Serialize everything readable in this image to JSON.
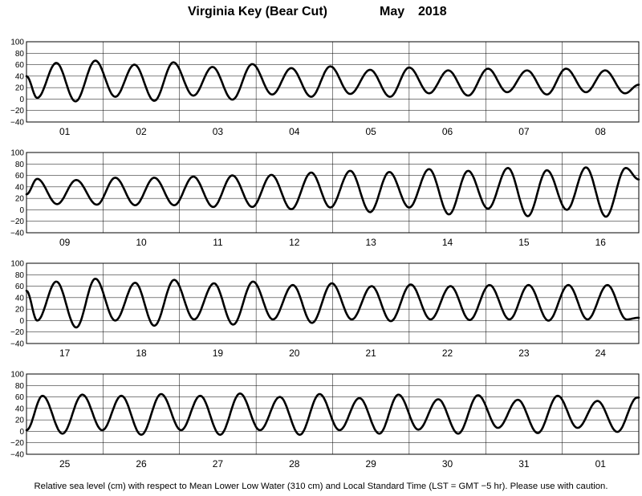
{
  "header": {
    "station": "Virginia Key (Bear Cut)",
    "month": "May",
    "year": "2018"
  },
  "caption": "Relative sea level (cm) with respect to Mean Lower Low Water (310 cm) and Local Standard Time (LST = GMT −5 hr). Please use with caution.",
  "chart_data": {
    "type": "line",
    "title": "Virginia Key (Bear Cut)  May 2018",
    "ylabel": "Relative sea level (cm)",
    "ylim": [
      -40,
      100
    ],
    "yticks": [
      "100",
      "80",
      "60",
      "40",
      "20",
      "0",
      "−20",
      "−40"
    ],
    "grid": true,
    "legend": "none",
    "panels": [
      {
        "days": [
          "01",
          "02",
          "03",
          "04",
          "05",
          "06",
          "07",
          "08"
        ],
        "tide_events": [
          [
            0.0,
            40
          ],
          [
            0.14,
            2
          ],
          [
            0.39,
            63
          ],
          [
            0.64,
            -4
          ],
          [
            0.9,
            67
          ],
          [
            1.16,
            4
          ],
          [
            1.41,
            60
          ],
          [
            1.67,
            -3
          ],
          [
            1.92,
            64
          ],
          [
            2.18,
            6
          ],
          [
            2.43,
            56
          ],
          [
            2.69,
            -1
          ],
          [
            2.95,
            61
          ],
          [
            3.21,
            8
          ],
          [
            3.46,
            54
          ],
          [
            3.72,
            4
          ],
          [
            3.97,
            57
          ],
          [
            4.23,
            9
          ],
          [
            4.49,
            51
          ],
          [
            4.75,
            4
          ],
          [
            5.0,
            55
          ],
          [
            5.26,
            10
          ],
          [
            5.51,
            50
          ],
          [
            5.77,
            6
          ],
          [
            6.03,
            53
          ],
          [
            6.28,
            12
          ],
          [
            6.54,
            50
          ],
          [
            6.8,
            8
          ],
          [
            7.05,
            53
          ],
          [
            7.31,
            12
          ],
          [
            7.56,
            50
          ],
          [
            7.82,
            10
          ],
          [
            8.0,
            25
          ]
        ]
      },
      {
        "days": [
          "09",
          "10",
          "11",
          "12",
          "13",
          "14",
          "15",
          "16"
        ],
        "tide_events": [
          [
            0.0,
            27
          ],
          [
            0.14,
            54
          ],
          [
            0.4,
            10
          ],
          [
            0.65,
            52
          ],
          [
            0.92,
            9
          ],
          [
            1.16,
            56
          ],
          [
            1.42,
            8
          ],
          [
            1.67,
            56
          ],
          [
            1.93,
            8
          ],
          [
            2.18,
            58
          ],
          [
            2.44,
            5
          ],
          [
            2.69,
            60
          ],
          [
            2.95,
            5
          ],
          [
            3.2,
            61
          ],
          [
            3.46,
            1
          ],
          [
            3.72,
            65
          ],
          [
            3.97,
            4
          ],
          [
            4.23,
            68
          ],
          [
            4.49,
            -4
          ],
          [
            4.74,
            66
          ],
          [
            5.0,
            4
          ],
          [
            5.26,
            71
          ],
          [
            5.52,
            -8
          ],
          [
            5.77,
            68
          ],
          [
            6.03,
            2
          ],
          [
            6.29,
            73
          ],
          [
            6.55,
            -11
          ],
          [
            6.8,
            69
          ],
          [
            7.06,
            0
          ],
          [
            7.31,
            74
          ],
          [
            7.57,
            -12
          ],
          [
            7.83,
            73
          ],
          [
            8.0,
            53
          ]
        ]
      },
      {
        "days": [
          "17",
          "18",
          "19",
          "20",
          "21",
          "22",
          "23",
          "24"
        ],
        "tide_events": [
          [
            0.0,
            52
          ],
          [
            0.14,
            0
          ],
          [
            0.39,
            68
          ],
          [
            0.65,
            -12
          ],
          [
            0.9,
            73
          ],
          [
            1.16,
            0
          ],
          [
            1.42,
            66
          ],
          [
            1.67,
            -9
          ],
          [
            1.93,
            71
          ],
          [
            2.19,
            2
          ],
          [
            2.45,
            65
          ],
          [
            2.7,
            -7
          ],
          [
            2.96,
            68
          ],
          [
            3.22,
            2
          ],
          [
            3.48,
            62
          ],
          [
            3.73,
            -4
          ],
          [
            3.99,
            65
          ],
          [
            4.25,
            2
          ],
          [
            4.51,
            60
          ],
          [
            4.76,
            -1
          ],
          [
            5.02,
            63
          ],
          [
            5.28,
            2
          ],
          [
            5.54,
            60
          ],
          [
            5.79,
            1
          ],
          [
            6.05,
            62
          ],
          [
            6.31,
            2
          ],
          [
            6.56,
            62
          ],
          [
            6.82,
            0
          ],
          [
            7.08,
            62
          ],
          [
            7.33,
            2
          ],
          [
            7.59,
            62
          ],
          [
            7.84,
            2
          ],
          [
            8.0,
            5
          ]
        ]
      },
      {
        "days": [
          "25",
          "26",
          "27",
          "28",
          "29",
          "30",
          "31",
          "01"
        ],
        "tide_events": [
          [
            0.0,
            2
          ],
          [
            0.21,
            62
          ],
          [
            0.47,
            -4
          ],
          [
            0.73,
            64
          ],
          [
            0.99,
            2
          ],
          [
            1.24,
            62
          ],
          [
            1.5,
            -6
          ],
          [
            1.76,
            65
          ],
          [
            2.02,
            2
          ],
          [
            2.27,
            62
          ],
          [
            2.53,
            -6
          ],
          [
            2.79,
            66
          ],
          [
            3.05,
            2
          ],
          [
            3.31,
            60
          ],
          [
            3.57,
            -6
          ],
          [
            3.83,
            65
          ],
          [
            4.09,
            2
          ],
          [
            4.35,
            58
          ],
          [
            4.61,
            -4
          ],
          [
            4.86,
            64
          ],
          [
            5.12,
            3
          ],
          [
            5.38,
            56
          ],
          [
            5.64,
            -4
          ],
          [
            5.9,
            63
          ],
          [
            6.16,
            6
          ],
          [
            6.42,
            55
          ],
          [
            6.68,
            -3
          ],
          [
            6.94,
            62
          ],
          [
            7.2,
            6
          ],
          [
            7.46,
            53
          ],
          [
            7.72,
            -1
          ],
          [
            7.98,
            59
          ],
          [
            8.0,
            59
          ]
        ]
      }
    ]
  }
}
